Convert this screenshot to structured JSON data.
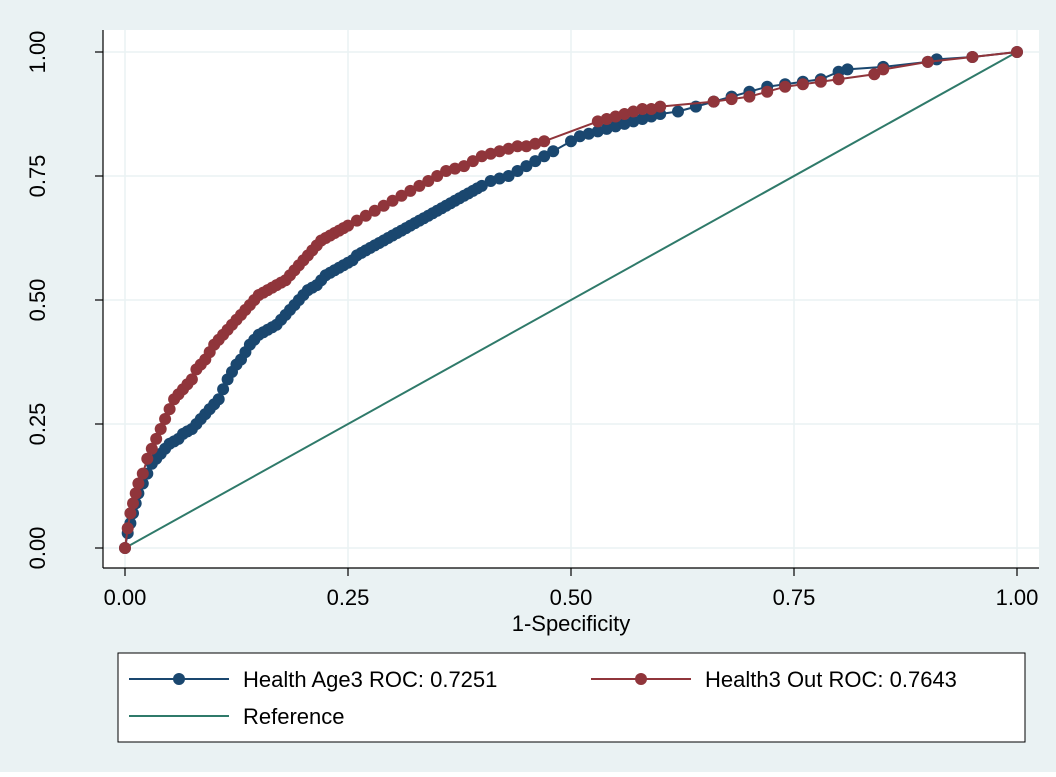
{
  "chart_data": {
    "type": "line",
    "title": "",
    "xlabel": "1-Specificity",
    "ylabel": "",
    "xlim": [
      0,
      1
    ],
    "ylim": [
      0,
      1
    ],
    "x_ticks": [
      "0.00",
      "0.25",
      "0.50",
      "0.75",
      "1.00"
    ],
    "y_ticks": [
      "0.00",
      "0.25",
      "0.50",
      "0.75",
      "1.00"
    ],
    "grid": true,
    "legend_position": "bottom",
    "colors": {
      "background": "#eaf2f3",
      "plot_bg": "#ffffff",
      "grid": "#eaf2f3",
      "series_age3": "#1a476f",
      "series_out": "#90353b",
      "reference": "#2f7a6a"
    },
    "series": [
      {
        "name": "Health Age3 ROC: 0.7251",
        "key": "age3",
        "marker": "circle",
        "x": [
          0,
          0.003,
          0.006,
          0.009,
          0.012,
          0.015,
          0.02,
          0.025,
          0.03,
          0.035,
          0.04,
          0.045,
          0.05,
          0.055,
          0.06,
          0.065,
          0.07,
          0.075,
          0.08,
          0.085,
          0.09,
          0.095,
          0.1,
          0.105,
          0.11,
          0.115,
          0.12,
          0.125,
          0.13,
          0.135,
          0.14,
          0.145,
          0.15,
          0.155,
          0.16,
          0.165,
          0.17,
          0.175,
          0.18,
          0.185,
          0.19,
          0.195,
          0.2,
          0.205,
          0.21,
          0.215,
          0.22,
          0.225,
          0.23,
          0.235,
          0.24,
          0.245,
          0.25,
          0.255,
          0.26,
          0.265,
          0.27,
          0.275,
          0.28,
          0.285,
          0.29,
          0.295,
          0.3,
          0.305,
          0.31,
          0.315,
          0.32,
          0.325,
          0.33,
          0.335,
          0.34,
          0.345,
          0.35,
          0.355,
          0.36,
          0.365,
          0.37,
          0.375,
          0.38,
          0.385,
          0.39,
          0.395,
          0.4,
          0.41,
          0.42,
          0.43,
          0.44,
          0.45,
          0.46,
          0.47,
          0.48,
          0.5,
          0.51,
          0.52,
          0.53,
          0.54,
          0.55,
          0.56,
          0.57,
          0.58,
          0.59,
          0.6,
          0.62,
          0.64,
          0.66,
          0.68,
          0.7,
          0.72,
          0.74,
          0.76,
          0.78,
          0.8,
          0.81,
          0.85,
          0.9,
          0.91,
          0.95,
          1.0
        ],
        "y": [
          0,
          0.03,
          0.05,
          0.07,
          0.09,
          0.11,
          0.13,
          0.15,
          0.17,
          0.18,
          0.19,
          0.2,
          0.21,
          0.215,
          0.22,
          0.23,
          0.235,
          0.24,
          0.25,
          0.26,
          0.27,
          0.28,
          0.29,
          0.3,
          0.32,
          0.34,
          0.355,
          0.37,
          0.38,
          0.395,
          0.41,
          0.42,
          0.43,
          0.435,
          0.44,
          0.445,
          0.45,
          0.46,
          0.47,
          0.48,
          0.49,
          0.5,
          0.51,
          0.52,
          0.525,
          0.53,
          0.54,
          0.55,
          0.555,
          0.56,
          0.565,
          0.57,
          0.575,
          0.58,
          0.59,
          0.595,
          0.6,
          0.605,
          0.61,
          0.615,
          0.62,
          0.625,
          0.63,
          0.635,
          0.64,
          0.645,
          0.65,
          0.655,
          0.66,
          0.665,
          0.67,
          0.675,
          0.68,
          0.685,
          0.69,
          0.695,
          0.7,
          0.705,
          0.71,
          0.715,
          0.72,
          0.725,
          0.73,
          0.74,
          0.745,
          0.75,
          0.76,
          0.77,
          0.78,
          0.79,
          0.8,
          0.82,
          0.83,
          0.835,
          0.84,
          0.845,
          0.85,
          0.855,
          0.86,
          0.865,
          0.87,
          0.875,
          0.88,
          0.89,
          0.9,
          0.91,
          0.92,
          0.93,
          0.935,
          0.94,
          0.945,
          0.96,
          0.965,
          0.97,
          0.98,
          0.985,
          0.99,
          1.0
        ]
      },
      {
        "name": "Health3 Out ROC: 0.7643",
        "key": "out",
        "marker": "circle",
        "x": [
          0,
          0.003,
          0.006,
          0.009,
          0.012,
          0.015,
          0.02,
          0.025,
          0.03,
          0.035,
          0.04,
          0.045,
          0.05,
          0.055,
          0.06,
          0.065,
          0.07,
          0.075,
          0.08,
          0.085,
          0.09,
          0.095,
          0.1,
          0.105,
          0.11,
          0.115,
          0.12,
          0.125,
          0.13,
          0.135,
          0.14,
          0.145,
          0.15,
          0.155,
          0.16,
          0.165,
          0.17,
          0.175,
          0.18,
          0.185,
          0.19,
          0.195,
          0.2,
          0.205,
          0.21,
          0.215,
          0.22,
          0.225,
          0.23,
          0.235,
          0.24,
          0.245,
          0.25,
          0.26,
          0.27,
          0.28,
          0.29,
          0.3,
          0.31,
          0.32,
          0.33,
          0.34,
          0.35,
          0.36,
          0.37,
          0.38,
          0.39,
          0.4,
          0.41,
          0.42,
          0.43,
          0.44,
          0.45,
          0.46,
          0.47,
          0.53,
          0.54,
          0.55,
          0.56,
          0.57,
          0.58,
          0.59,
          0.6,
          0.66,
          0.68,
          0.7,
          0.72,
          0.74,
          0.76,
          0.78,
          0.8,
          0.84,
          0.85,
          0.9,
          0.95,
          1.0
        ],
        "y": [
          0,
          0.04,
          0.07,
          0.09,
          0.11,
          0.13,
          0.15,
          0.18,
          0.2,
          0.22,
          0.24,
          0.26,
          0.28,
          0.3,
          0.31,
          0.32,
          0.33,
          0.34,
          0.36,
          0.37,
          0.38,
          0.395,
          0.41,
          0.42,
          0.43,
          0.44,
          0.45,
          0.46,
          0.47,
          0.48,
          0.49,
          0.5,
          0.51,
          0.515,
          0.52,
          0.525,
          0.53,
          0.535,
          0.54,
          0.55,
          0.56,
          0.57,
          0.58,
          0.59,
          0.6,
          0.61,
          0.62,
          0.625,
          0.63,
          0.635,
          0.64,
          0.645,
          0.65,
          0.66,
          0.67,
          0.68,
          0.69,
          0.7,
          0.71,
          0.72,
          0.73,
          0.74,
          0.75,
          0.76,
          0.765,
          0.77,
          0.78,
          0.79,
          0.795,
          0.8,
          0.805,
          0.81,
          0.81,
          0.815,
          0.82,
          0.86,
          0.865,
          0.87,
          0.875,
          0.88,
          0.885,
          0.885,
          0.89,
          0.9,
          0.905,
          0.91,
          0.92,
          0.93,
          0.935,
          0.94,
          0.945,
          0.955,
          0.965,
          0.98,
          0.99,
          1.0
        ]
      },
      {
        "name": "Reference",
        "key": "ref",
        "marker": "none",
        "x": [
          0,
          1
        ],
        "y": [
          0,
          1
        ]
      }
    ]
  }
}
